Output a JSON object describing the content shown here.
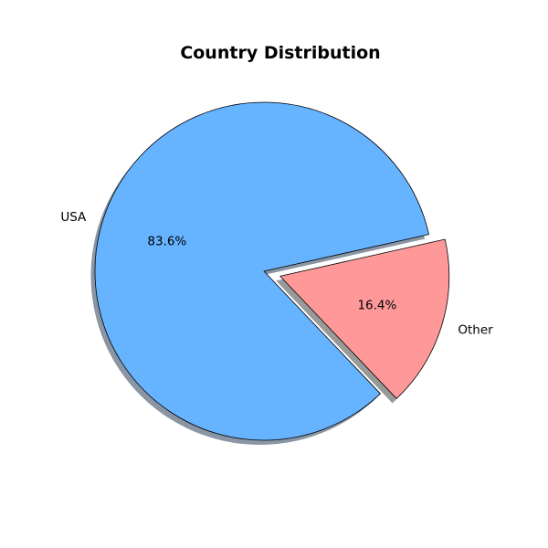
{
  "chart_data": {
    "type": "pie",
    "title": "Country Distribution",
    "slices": [
      {
        "label": "USA",
        "value": 83.6,
        "pct_label": "83.6%",
        "color": "#66b3ff",
        "exploded": false
      },
      {
        "label": "Other",
        "value": 16.4,
        "pct_label": "16.4%",
        "color": "#ff9999",
        "exploded": true
      }
    ],
    "shadow": true,
    "edge_color": "#000000"
  }
}
